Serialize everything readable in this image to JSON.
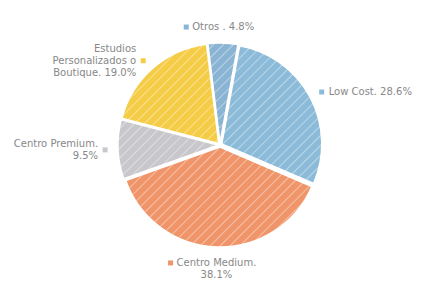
{
  "chart_data": {
    "type": "pie",
    "values": [
      4.8,
      28.6,
      38.1,
      9.5,
      19.0
    ],
    "value_labels": [
      "Otros . 4.8%",
      "Low Cost. 28.6%",
      "Centro Medium.\n38.1%",
      "Centro Premium.\n9.5%",
      "Estudios\nPersonalizados o\nBoutique. 19.0%"
    ],
    "colors": [
      "#8ab4d4",
      "#8bbbd8",
      "#f0956a",
      "#c8c8cc",
      "#f5cc45"
    ]
  }
}
